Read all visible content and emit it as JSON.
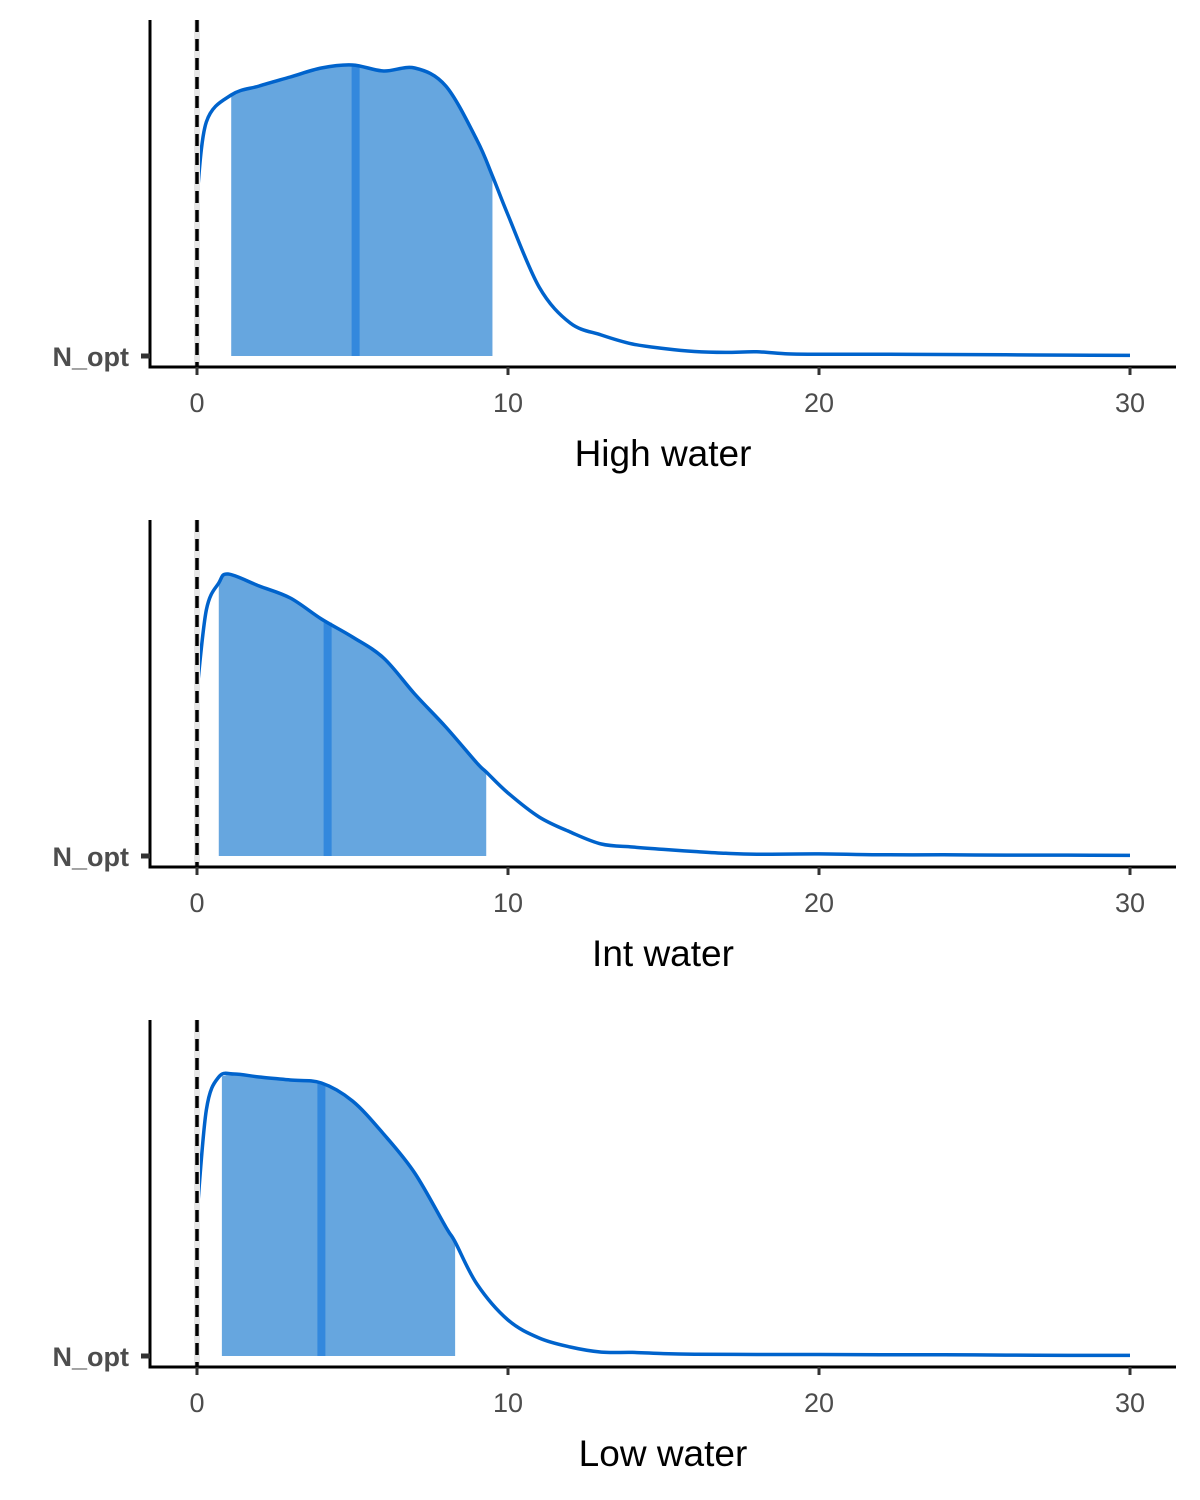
{
  "chart_data": [
    {
      "type": "area",
      "xlabel": "High water",
      "y_tick_label": "N_opt",
      "x_ticks": [
        0,
        10,
        20,
        30
      ],
      "xlim": [
        -1.5,
        31.5
      ],
      "reference_line_x": 0,
      "interval": [
        1.1,
        9.5
      ],
      "median": 5.1,
      "density_x": [
        0,
        0.3,
        1.1,
        2,
        3,
        4,
        5,
        6,
        7,
        8,
        9,
        9.5,
        10,
        11,
        12,
        13,
        14,
        15,
        16,
        17,
        18,
        19,
        20,
        22,
        24,
        26,
        28,
        30
      ],
      "density_y": [
        0.53,
        0.78,
        0.87,
        0.9,
        0.93,
        0.96,
        0.97,
        0.95,
        0.96,
        0.9,
        0.72,
        0.6,
        0.47,
        0.23,
        0.11,
        0.07,
        0.04,
        0.025,
        0.015,
        0.012,
        0.014,
        0.007,
        0.006,
        0.006,
        0.005,
        0.004,
        0.003,
        0.002
      ],
      "ylim": [
        0,
        1.5
      ]
    },
    {
      "type": "area",
      "xlabel": "Int water",
      "y_tick_label": "N_opt",
      "x_ticks": [
        0,
        10,
        20,
        30
      ],
      "xlim": [
        -1.5,
        31.5
      ],
      "reference_line_x": 0,
      "interval": [
        0.7,
        9.3
      ],
      "median": 4.2,
      "density_x": [
        0,
        0.3,
        0.7,
        1.0,
        2,
        3,
        4,
        5,
        6,
        7,
        8,
        9,
        9.3,
        10,
        11,
        12,
        13,
        14,
        15,
        16,
        17,
        18,
        20,
        22,
        24,
        26,
        28,
        30
      ],
      "density_y": [
        0.55,
        0.82,
        0.91,
        0.94,
        0.9,
        0.86,
        0.79,
        0.73,
        0.66,
        0.54,
        0.43,
        0.31,
        0.28,
        0.21,
        0.13,
        0.08,
        0.04,
        0.03,
        0.022,
        0.015,
        0.009,
        0.006,
        0.007,
        0.004,
        0.004,
        0.003,
        0.003,
        0.002
      ],
      "ylim": [
        0,
        1.5
      ]
    },
    {
      "type": "area",
      "xlabel": "Low water",
      "y_tick_label": "N_opt",
      "x_ticks": [
        0,
        10,
        20,
        30
      ],
      "xlim": [
        -1.5,
        31.5
      ],
      "reference_line_x": 0,
      "interval": [
        0.8,
        8.3
      ],
      "median": 4.0,
      "density_x": [
        0,
        0.3,
        0.7,
        1.2,
        2,
        3,
        4,
        5,
        6,
        7,
        8,
        8.3,
        9,
        10,
        11,
        12,
        13,
        14,
        15,
        16,
        18,
        20,
        22,
        24,
        26,
        28,
        30
      ],
      "density_y": [
        0.47,
        0.82,
        0.93,
        0.94,
        0.93,
        0.92,
        0.91,
        0.85,
        0.74,
        0.61,
        0.43,
        0.38,
        0.24,
        0.12,
        0.06,
        0.03,
        0.013,
        0.012,
        0.008,
        0.006,
        0.005,
        0.005,
        0.004,
        0.004,
        0.003,
        0.002,
        0.002
      ],
      "ylim": [
        0,
        1.5
      ]
    }
  ],
  "colors": {
    "line": "#0063cc",
    "fill": "#66a6df",
    "median": "#3388dd",
    "axis": "#000000",
    "reference_line": "#000000",
    "reference_halo": "#e6e6e6"
  }
}
